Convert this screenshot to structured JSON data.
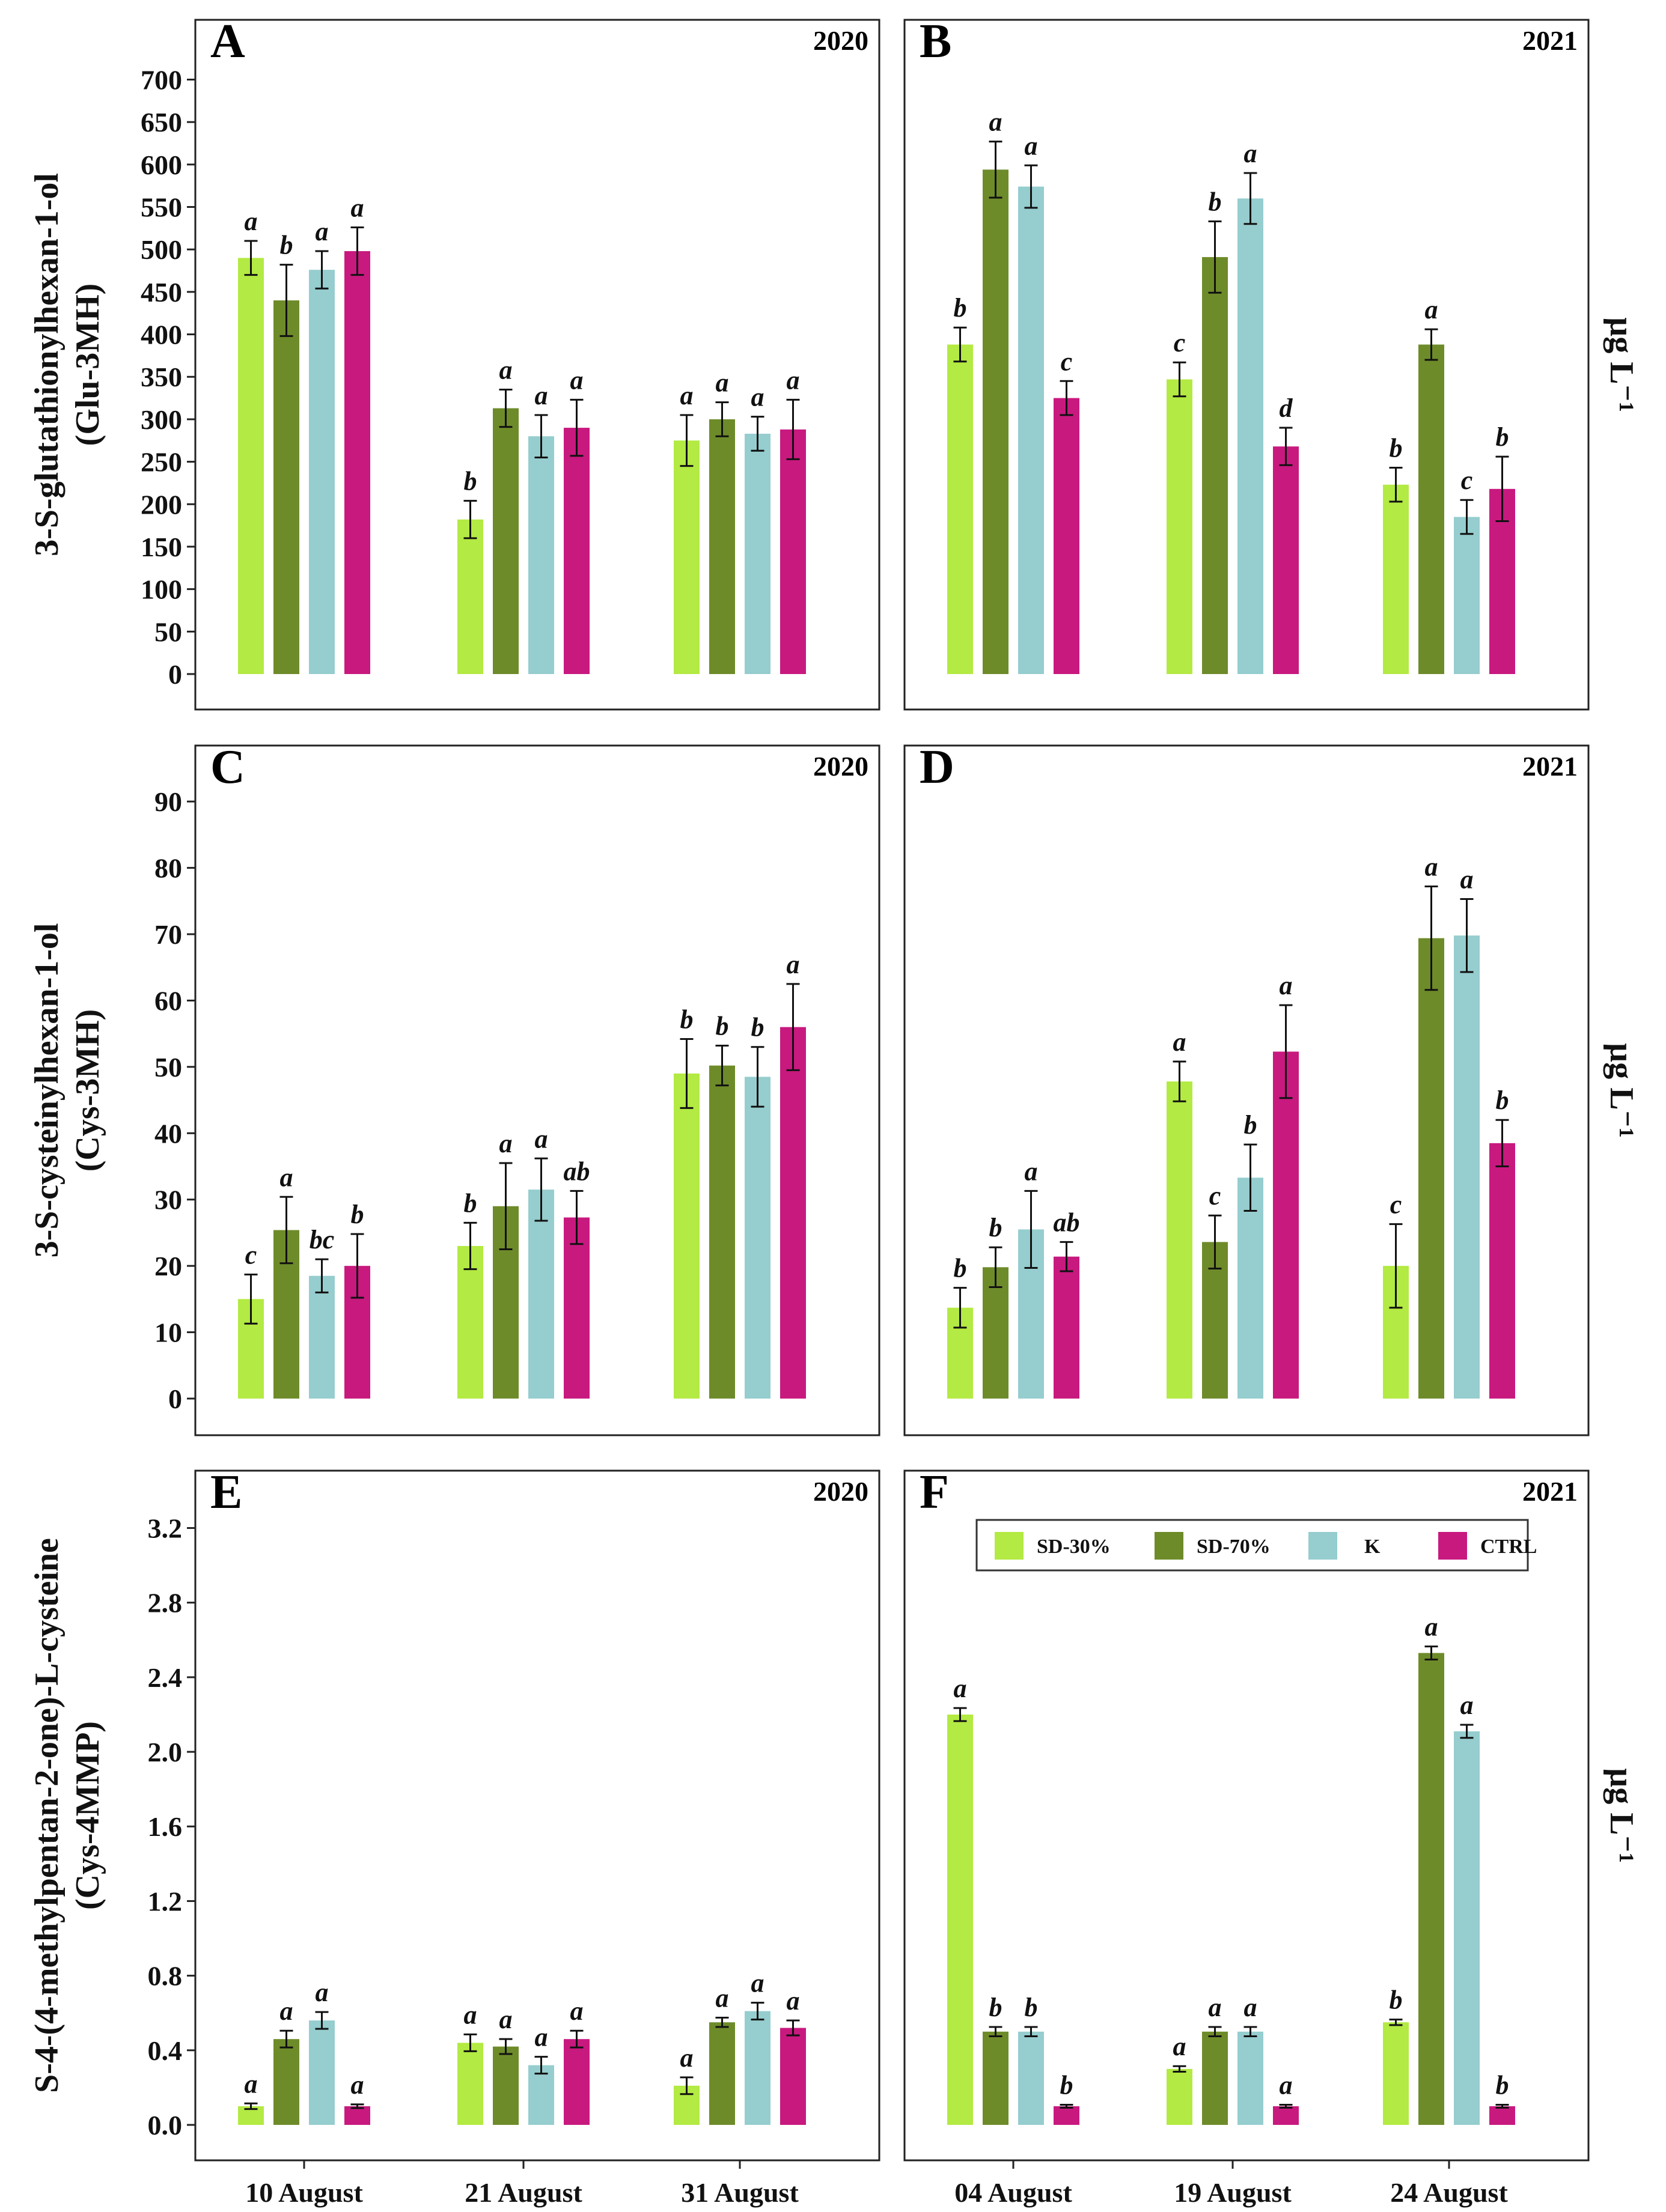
{
  "figure": {
    "series_names": [
      "SD-30%",
      "SD-70%",
      "K",
      "CTRL"
    ],
    "colors": {
      "SD-30%": "#b3ea43",
      "SD-70%": "#6e8b2a",
      "K": "#96cdcf",
      "CTRL": "#c8197f"
    },
    "right_unit": "µg L⁻¹"
  },
  "chart_data": [
    {
      "type": "bar",
      "panel": "A",
      "year": "2020",
      "ylabel_lines": [
        "3-S-glutathionylhexan-1-ol",
        "(Glu-3MH)"
      ],
      "ylim": [
        0,
        735
      ],
      "yticks": [
        0,
        50,
        100,
        150,
        200,
        250,
        300,
        350,
        400,
        450,
        500,
        550,
        600,
        650,
        700
      ],
      "categories": [
        "10 August",
        "21 August",
        "31 August"
      ],
      "series": [
        {
          "name": "SD-30%",
          "values": [
            490,
            182,
            275
          ],
          "errors": [
            20,
            22,
            30
          ],
          "letters": [
            "a",
            "b",
            "a"
          ]
        },
        {
          "name": "SD-70%",
          "values": [
            440,
            313,
            300
          ],
          "errors": [
            42,
            22,
            20
          ],
          "letters": [
            "b",
            "a",
            "a"
          ]
        },
        {
          "name": "K",
          "values": [
            476,
            280,
            283
          ],
          "errors": [
            22,
            25,
            20
          ],
          "letters": [
            "a",
            "a",
            "a"
          ]
        },
        {
          "name": "CTRL",
          "values": [
            498,
            290,
            288
          ],
          "errors": [
            28,
            33,
            35
          ],
          "letters": [
            "a",
            "a",
            "a"
          ]
        }
      ]
    },
    {
      "type": "bar",
      "panel": "B",
      "year": "2021",
      "ylim": [
        0,
        735
      ],
      "yticks": [
        0,
        50,
        100,
        150,
        200,
        250,
        300,
        350,
        400,
        450,
        500,
        550,
        600,
        650,
        700
      ],
      "categories": [
        "04 August",
        "19 August",
        "24 August"
      ],
      "series": [
        {
          "name": "SD-30%",
          "values": [
            388,
            347,
            223
          ],
          "errors": [
            20,
            20,
            20
          ],
          "letters": [
            "b",
            "c",
            "b"
          ]
        },
        {
          "name": "SD-70%",
          "values": [
            594,
            491,
            388
          ],
          "errors": [
            33,
            42,
            18
          ],
          "letters": [
            "a",
            "b",
            "a"
          ]
        },
        {
          "name": "K",
          "values": [
            574,
            560,
            185
          ],
          "errors": [
            25,
            30,
            20
          ],
          "letters": [
            "a",
            "a",
            "c"
          ]
        },
        {
          "name": "CTRL",
          "values": [
            325,
            268,
            218
          ],
          "errors": [
            20,
            22,
            38
          ],
          "letters": [
            "c",
            "d",
            "b"
          ]
        }
      ]
    },
    {
      "type": "bar",
      "panel": "C",
      "year": "2020",
      "ylabel_lines": [
        "3-S-cysteinylhexan-1-ol",
        "(Cys-3MH)"
      ],
      "ylim": [
        0,
        94
      ],
      "yticks": [
        0,
        10,
        20,
        30,
        40,
        50,
        60,
        70,
        80,
        90
      ],
      "categories": [
        "10 August",
        "21 August",
        "31 August"
      ],
      "series": [
        {
          "name": "SD-30%",
          "values": [
            15,
            23,
            49
          ],
          "errors": [
            3.7,
            3.5,
            5.2
          ],
          "letters": [
            "c",
            "b",
            "b"
          ]
        },
        {
          "name": "SD-70%",
          "values": [
            25.4,
            29,
            50.2
          ],
          "errors": [
            5,
            6.5,
            3
          ],
          "letters": [
            "a",
            "a",
            "b"
          ]
        },
        {
          "name": "K",
          "values": [
            18.5,
            31.5,
            48.5
          ],
          "errors": [
            2.5,
            4.7,
            4.5
          ],
          "letters": [
            "bc",
            "a",
            "b"
          ]
        },
        {
          "name": "CTRL",
          "values": [
            20,
            27.3,
            56
          ],
          "errors": [
            4.8,
            4,
            6.5
          ],
          "letters": [
            "b",
            "ab",
            "a"
          ]
        }
      ]
    },
    {
      "type": "bar",
      "panel": "D",
      "year": "2021",
      "ylim": [
        0,
        94
      ],
      "yticks": [
        0,
        10,
        20,
        30,
        40,
        50,
        60,
        70,
        80,
        90
      ],
      "categories": [
        "04 August",
        "19 August",
        "24 August"
      ],
      "series": [
        {
          "name": "SD-30%",
          "values": [
            13.7,
            47.8,
            20
          ],
          "errors": [
            3,
            3,
            6.3
          ],
          "letters": [
            "b",
            "a",
            "c"
          ]
        },
        {
          "name": "SD-70%",
          "values": [
            19.8,
            23.6,
            69.4
          ],
          "errors": [
            3,
            4,
            7.8
          ],
          "letters": [
            "b",
            "c",
            "a"
          ]
        },
        {
          "name": "K",
          "values": [
            25.5,
            33.3,
            69.8
          ],
          "errors": [
            5.8,
            5,
            5.5
          ],
          "letters": [
            "a",
            "b",
            "a"
          ]
        },
        {
          "name": "CTRL",
          "values": [
            21.4,
            52.3,
            38.5
          ],
          "errors": [
            2.2,
            7,
            3.5
          ],
          "letters": [
            "ab",
            "a",
            "b"
          ]
        }
      ]
    },
    {
      "type": "bar",
      "panel": "E",
      "year": "2020",
      "ylabel_lines": [
        "S-4-(4-methylpentan-2-one)-L-cysteine",
        "(Cys-4MMP)"
      ],
      "ylim": [
        0,
        3.34
      ],
      "yticks": [
        "0.0",
        "0.4",
        "0.8",
        "1.2",
        "1.6",
        "2.0",
        "2.4",
        "2.8",
        "3.2"
      ],
      "categories": [
        "10 August",
        "21 August",
        "31 August"
      ],
      "series": [
        {
          "name": "SD-30%",
          "values": [
            0.1,
            0.44,
            0.21
          ],
          "errors": [
            0.015,
            0.045,
            0.045
          ],
          "letters": [
            "a",
            "a",
            "a"
          ]
        },
        {
          "name": "SD-70%",
          "values": [
            0.46,
            0.42,
            0.55
          ],
          "errors": [
            0.045,
            0.04,
            0.025
          ],
          "letters": [
            "a",
            "a",
            "a"
          ]
        },
        {
          "name": "K",
          "values": [
            0.56,
            0.32,
            0.61
          ],
          "errors": [
            0.045,
            0.045,
            0.045
          ],
          "letters": [
            "a",
            "a",
            "a"
          ]
        },
        {
          "name": "CTRL",
          "values": [
            0.1,
            0.46,
            0.52
          ],
          "errors": [
            0.01,
            0.045,
            0.04
          ],
          "letters": [
            "a",
            "a",
            "a"
          ]
        }
      ]
    },
    {
      "type": "bar",
      "panel": "F",
      "year": "2021",
      "ylim": [
        0,
        3.34
      ],
      "yticks": [
        "0.0",
        "0.4",
        "0.8",
        "1.2",
        "1.6",
        "2.0",
        "2.4",
        "2.8",
        "3.2"
      ],
      "categories": [
        "04 August",
        "19 August",
        "24 August"
      ],
      "legend": {
        "entries": [
          "SD-30%",
          "SD-70%",
          "K",
          "CTRL"
        ],
        "position": "top"
      },
      "series": [
        {
          "name": "SD-30%",
          "values": [
            2.2,
            0.3,
            0.55
          ],
          "errors": [
            0.035,
            0.015,
            0.015
          ],
          "letters": [
            "a",
            "a",
            "b"
          ]
        },
        {
          "name": "SD-70%",
          "values": [
            0.5,
            0.5,
            2.53
          ],
          "errors": [
            0.025,
            0.025,
            0.035
          ],
          "letters": [
            "b",
            "a",
            "a"
          ]
        },
        {
          "name": "K",
          "values": [
            0.5,
            0.5,
            2.11
          ],
          "errors": [
            0.025,
            0.025,
            0.035
          ],
          "letters": [
            "b",
            "a",
            "a"
          ]
        },
        {
          "name": "CTRL",
          "values": [
            0.1,
            0.1,
            0.1
          ],
          "errors": [
            0.008,
            0.008,
            0.008
          ],
          "letters": [
            "b",
            "a",
            "b"
          ]
        }
      ]
    }
  ]
}
